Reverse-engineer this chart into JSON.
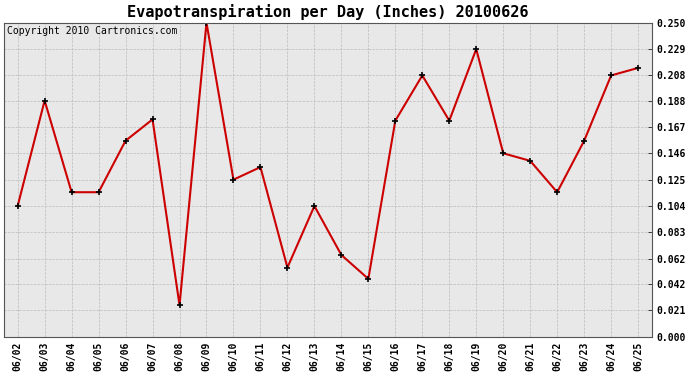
{
  "title": "Evapotranspiration per Day (Inches) 20100626",
  "copyright_text": "Copyright 2010 Cartronics.com",
  "dates": [
    "06/02",
    "06/03",
    "06/04",
    "06/05",
    "06/06",
    "06/07",
    "06/08",
    "06/09",
    "06/10",
    "06/11",
    "06/12",
    "06/13",
    "06/14",
    "06/15",
    "06/16",
    "06/17",
    "06/18",
    "06/19",
    "06/20",
    "06/21",
    "06/22",
    "06/23",
    "06/24",
    "06/25"
  ],
  "values": [
    0.104,
    0.188,
    0.115,
    0.115,
    0.156,
    0.173,
    0.025,
    0.25,
    0.125,
    0.135,
    0.055,
    0.104,
    0.065,
    0.046,
    0.172,
    0.208,
    0.172,
    0.229,
    0.146,
    0.14,
    0.115,
    0.156,
    0.208,
    0.214
  ],
  "line_color": "#cc0000",
  "marker": "+",
  "marker_size": 5,
  "marker_color": "#000000",
  "background_color": "#e8e8e8",
  "grid_color": "#bbbbbb",
  "grid_linestyle": "--",
  "ylim": [
    0.0,
    0.25
  ],
  "yticks": [
    0.0,
    0.021,
    0.042,
    0.062,
    0.083,
    0.104,
    0.125,
    0.146,
    0.167,
    0.188,
    0.208,
    0.229,
    0.25
  ],
  "title_fontsize": 11,
  "copyright_fontsize": 7,
  "tick_fontsize": 7,
  "line_width": 1.5
}
